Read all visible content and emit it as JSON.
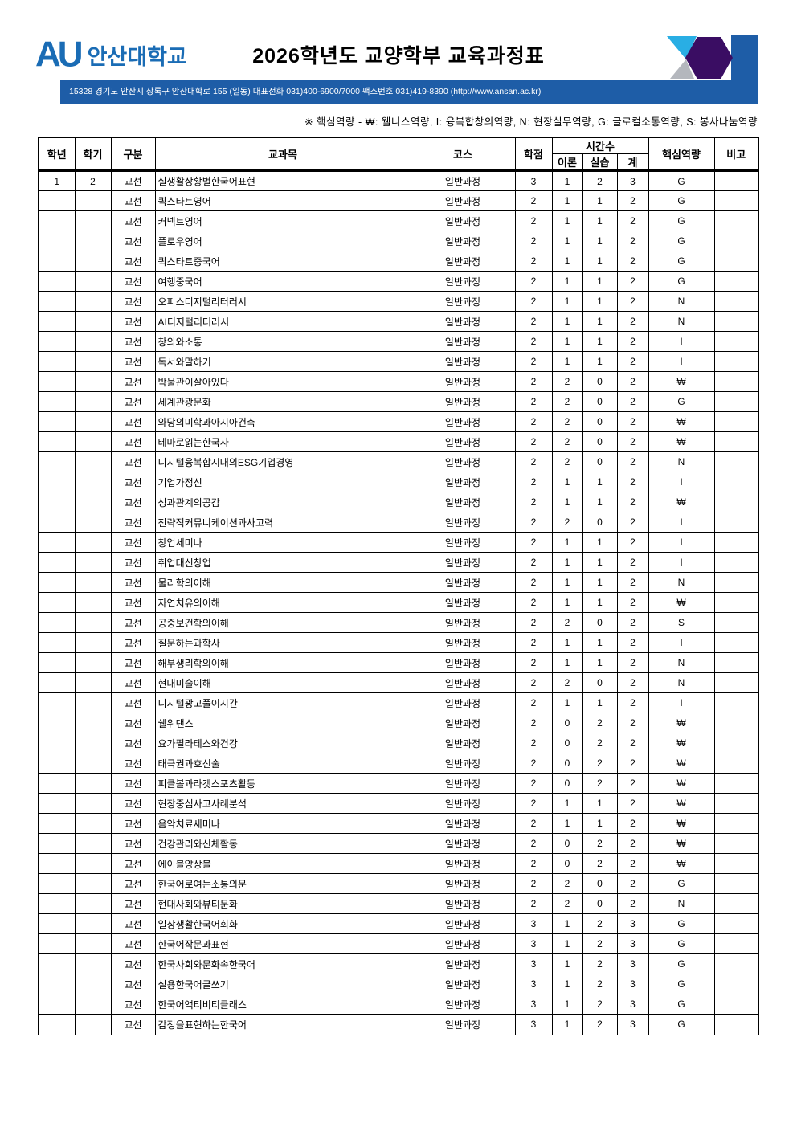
{
  "header": {
    "logo_au": "AU",
    "logo_university": "안산대학교",
    "title": "2026학년도 교양학부 교육과정표",
    "address_bar": "15328 경기도 안산시 상록구 안산대학로 155 (일동) 대표전화 031)400-6900/7000 팩스번호 031)419-8390 (http://www.ansan.ac.kr)"
  },
  "note": "※ 핵심역량 - ₩: 웰니스역량, I: 융복합창의역량, N: 현장실무역량, G: 글로컬소통역량, S: 봉사나눔역량",
  "colors": {
    "logo_blue": "#1a6cb5",
    "bar_blue": "#1e5da7",
    "accent_cyan": "#29aee4",
    "accent_gray": "#b4b7bd",
    "accent_purple": "#3a0d63"
  },
  "table": {
    "headers": {
      "year": "학년",
      "semester": "학기",
      "category": "구분",
      "course": "교과목",
      "track": "코스",
      "credits": "학점",
      "hours": "시간수",
      "theory": "이론",
      "practice": "실습",
      "total": "계",
      "competency": "핵심역량",
      "note": "비고"
    },
    "rows": [
      [
        "1",
        "2",
        "교선",
        "실생활상황별한국어표현",
        "일반과정",
        "3",
        "1",
        "2",
        "3",
        "G",
        ""
      ],
      [
        "",
        "",
        "교선",
        "퀵스타트영어",
        "일반과정",
        "2",
        "1",
        "1",
        "2",
        "G",
        ""
      ],
      [
        "",
        "",
        "교선",
        "커넥트영어",
        "일반과정",
        "2",
        "1",
        "1",
        "2",
        "G",
        ""
      ],
      [
        "",
        "",
        "교선",
        "플로우영어",
        "일반과정",
        "2",
        "1",
        "1",
        "2",
        "G",
        ""
      ],
      [
        "",
        "",
        "교선",
        "퀵스타트중국어",
        "일반과정",
        "2",
        "1",
        "1",
        "2",
        "G",
        ""
      ],
      [
        "",
        "",
        "교선",
        "여행중국어",
        "일반과정",
        "2",
        "1",
        "1",
        "2",
        "G",
        ""
      ],
      [
        "",
        "",
        "교선",
        "오피스디지털리터러시",
        "일반과정",
        "2",
        "1",
        "1",
        "2",
        "N",
        ""
      ],
      [
        "",
        "",
        "교선",
        "AI디지털리터러시",
        "일반과정",
        "2",
        "1",
        "1",
        "2",
        "N",
        ""
      ],
      [
        "",
        "",
        "교선",
        "창의와소통",
        "일반과정",
        "2",
        "1",
        "1",
        "2",
        "I",
        ""
      ],
      [
        "",
        "",
        "교선",
        "독서와말하기",
        "일반과정",
        "2",
        "1",
        "1",
        "2",
        "I",
        ""
      ],
      [
        "",
        "",
        "교선",
        "박물관이살아있다",
        "일반과정",
        "2",
        "2",
        "0",
        "2",
        "₩",
        ""
      ],
      [
        "",
        "",
        "교선",
        "세계관광문화",
        "일반과정",
        "2",
        "2",
        "0",
        "2",
        "G",
        ""
      ],
      [
        "",
        "",
        "교선",
        "와당의미학과아시아건축",
        "일반과정",
        "2",
        "2",
        "0",
        "2",
        "₩",
        ""
      ],
      [
        "",
        "",
        "교선",
        "테마로읽는한국사",
        "일반과정",
        "2",
        "2",
        "0",
        "2",
        "₩",
        ""
      ],
      [
        "",
        "",
        "교선",
        "디지털융복합시대의ESG기업경영",
        "일반과정",
        "2",
        "2",
        "0",
        "2",
        "N",
        ""
      ],
      [
        "",
        "",
        "교선",
        "기업가정신",
        "일반과정",
        "2",
        "1",
        "1",
        "2",
        "I",
        ""
      ],
      [
        "",
        "",
        "교선",
        "성과관계의공감",
        "일반과정",
        "2",
        "1",
        "1",
        "2",
        "₩",
        ""
      ],
      [
        "",
        "",
        "교선",
        "전략적커뮤니케이션과사고력",
        "일반과정",
        "2",
        "2",
        "0",
        "2",
        "I",
        ""
      ],
      [
        "",
        "",
        "교선",
        "창업세미나",
        "일반과정",
        "2",
        "1",
        "1",
        "2",
        "I",
        ""
      ],
      [
        "",
        "",
        "교선",
        "취업대신창업",
        "일반과정",
        "2",
        "1",
        "1",
        "2",
        "I",
        ""
      ],
      [
        "",
        "",
        "교선",
        "물리학의이해",
        "일반과정",
        "2",
        "1",
        "1",
        "2",
        "N",
        ""
      ],
      [
        "",
        "",
        "교선",
        "자연치유의이해",
        "일반과정",
        "2",
        "1",
        "1",
        "2",
        "₩",
        ""
      ],
      [
        "",
        "",
        "교선",
        "공중보건학의이해",
        "일반과정",
        "2",
        "2",
        "0",
        "2",
        "S",
        ""
      ],
      [
        "",
        "",
        "교선",
        "질문하는과학사",
        "일반과정",
        "2",
        "1",
        "1",
        "2",
        "I",
        ""
      ],
      [
        "",
        "",
        "교선",
        "해부생리학의이해",
        "일반과정",
        "2",
        "1",
        "1",
        "2",
        "N",
        ""
      ],
      [
        "",
        "",
        "교선",
        "현대미술이해",
        "일반과정",
        "2",
        "2",
        "0",
        "2",
        "N",
        ""
      ],
      [
        "",
        "",
        "교선",
        "디지털광고풀이시간",
        "일반과정",
        "2",
        "1",
        "1",
        "2",
        "I",
        ""
      ],
      [
        "",
        "",
        "교선",
        "쉘위댄스",
        "일반과정",
        "2",
        "0",
        "2",
        "2",
        "₩",
        ""
      ],
      [
        "",
        "",
        "교선",
        "요가필라테스와건강",
        "일반과정",
        "2",
        "0",
        "2",
        "2",
        "₩",
        ""
      ],
      [
        "",
        "",
        "교선",
        "태극권과호신술",
        "일반과정",
        "2",
        "0",
        "2",
        "2",
        "₩",
        ""
      ],
      [
        "",
        "",
        "교선",
        "피클볼과라켓스포츠활동",
        "일반과정",
        "2",
        "0",
        "2",
        "2",
        "₩",
        ""
      ],
      [
        "",
        "",
        "교선",
        "현장중심사고사례분석",
        "일반과정",
        "2",
        "1",
        "1",
        "2",
        "₩",
        ""
      ],
      [
        "",
        "",
        "교선",
        "음악치료세미나",
        "일반과정",
        "2",
        "1",
        "1",
        "2",
        "₩",
        ""
      ],
      [
        "",
        "",
        "교선",
        "건강관리와신체활동",
        "일반과정",
        "2",
        "0",
        "2",
        "2",
        "₩",
        ""
      ],
      [
        "",
        "",
        "교선",
        "에이블앙상블",
        "일반과정",
        "2",
        "0",
        "2",
        "2",
        "₩",
        ""
      ],
      [
        "",
        "",
        "교선",
        "한국어로여는소통의문",
        "일반과정",
        "2",
        "2",
        "0",
        "2",
        "G",
        ""
      ],
      [
        "",
        "",
        "교선",
        "현대사회와뷰티문화",
        "일반과정",
        "2",
        "2",
        "0",
        "2",
        "N",
        ""
      ],
      [
        "",
        "",
        "교선",
        "일상생활한국어회화",
        "일반과정",
        "3",
        "1",
        "2",
        "3",
        "G",
        ""
      ],
      [
        "",
        "",
        "교선",
        "한국어작문과표현",
        "일반과정",
        "3",
        "1",
        "2",
        "3",
        "G",
        ""
      ],
      [
        "",
        "",
        "교선",
        "한국사회와문화속한국어",
        "일반과정",
        "3",
        "1",
        "2",
        "3",
        "G",
        ""
      ],
      [
        "",
        "",
        "교선",
        "실용한국어글쓰기",
        "일반과정",
        "3",
        "1",
        "2",
        "3",
        "G",
        ""
      ],
      [
        "",
        "",
        "교선",
        "한국어액티비티클래스",
        "일반과정",
        "3",
        "1",
        "2",
        "3",
        "G",
        ""
      ],
      [
        "",
        "",
        "교선",
        "감정을표현하는한국어",
        "일반과정",
        "3",
        "1",
        "2",
        "3",
        "G",
        ""
      ]
    ]
  }
}
